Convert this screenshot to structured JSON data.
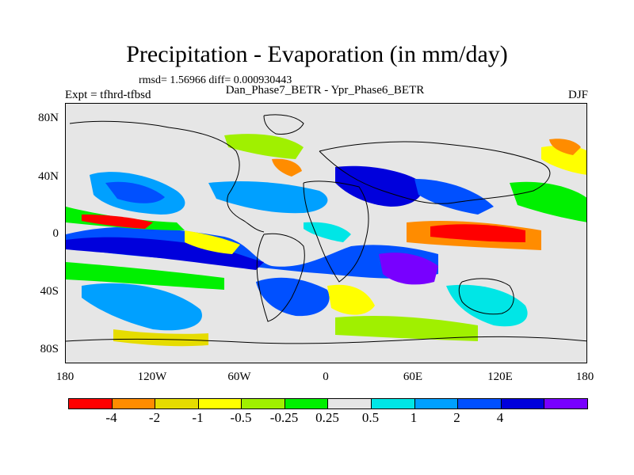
{
  "title": "Precipitation - Evaporation (in mm/day)",
  "stats": "rmsd= 1.56966 diff= 0.000930443",
  "subtitle": "Dan_Phase7_BETR - Ypr_Phase6_BETR",
  "expt": "Expt = tfhrd-tfbsd",
  "season": "DJF",
  "map": {
    "projection": "cylindrical equidistant",
    "lon_range": [
      -180,
      180
    ],
    "lat_range": [
      -90,
      90
    ],
    "background_color": "#e6e6e6",
    "x_ticks": [
      "180",
      "120W",
      "60W",
      "0",
      "60E",
      "120E",
      "180"
    ],
    "y_ticks": [
      "80N",
      "40N",
      "0",
      "40S",
      "80S"
    ]
  },
  "colorbar": {
    "colors": [
      "#ff0000",
      "#ff8c00",
      "#e6dc00",
      "#ffff00",
      "#a0f000",
      "#00f000",
      "#e6e6e6",
      "#00e6e6",
      "#00a0ff",
      "#0050ff",
      "#0000dc",
      "#7800ff"
    ],
    "labels": [
      "-4",
      "-2",
      "-1",
      "-0.5",
      "-0.25",
      "0.25",
      "0.5",
      "1",
      "2",
      "4"
    ]
  }
}
